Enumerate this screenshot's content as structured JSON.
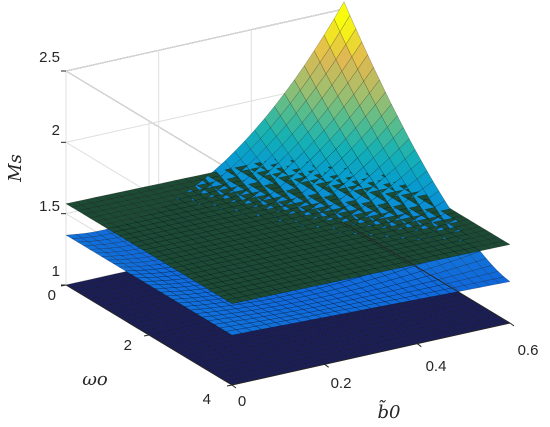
{
  "chart_data": {
    "type": "surface",
    "xlabel": "b̃0",
    "ylabel": "ωo",
    "zlabel": "Ms",
    "xlim": [
      0,
      0.6
    ],
    "ylim": [
      0,
      4
    ],
    "zlim": [
      1,
      2.5
    ],
    "x_ticks": [
      "0",
      "0.2",
      "0.4",
      "0.6"
    ],
    "y_ticks": [
      "0",
      "2",
      "4"
    ],
    "z_ticks": [
      "1",
      "1.5",
      "2",
      "2.5"
    ],
    "grid": true,
    "colormap": "parula",
    "surfaces": [
      {
        "shape": "plane",
        "z_at_corners": {
          "b0_min_w_min": 1.0,
          "b0_max_w_min": 1.0,
          "b0_min_w_max": 1.0,
          "b0_max_w_max": 1.0
        },
        "color": "#1a1e55"
      },
      {
        "shape": "plane",
        "z_at_corners": {
          "b0_min_w_min": 1.57,
          "b0_max_w_min": 1.55,
          "b0_min_w_max": 1.57,
          "b0_max_w_max": 1.55
        },
        "color": "#1d4a34"
      },
      {
        "shape": "curved",
        "z_at_corners": {
          "b0_min_w_min": 1.35,
          "b0_max_w_min": 2.55,
          "b0_min_w_max": 1.35,
          "b0_max_w_max": 1.3
        },
        "color": "parula"
      }
    ]
  }
}
